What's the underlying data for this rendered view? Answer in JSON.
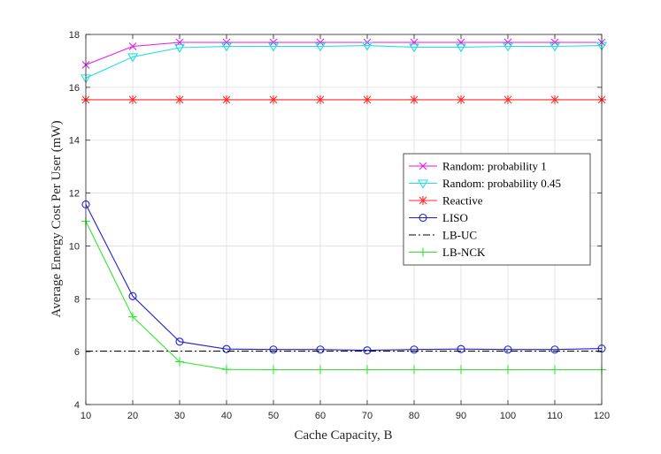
{
  "chart_data": {
    "type": "line",
    "xlabel": "Cache Capacity, B",
    "ylabel": "Average Energy Cost Per User (mW)",
    "xlim": [
      10,
      120
    ],
    "ylim": [
      4,
      18
    ],
    "xticks": [
      10,
      20,
      30,
      40,
      50,
      60,
      70,
      80,
      90,
      100,
      110,
      120
    ],
    "yticks": [
      4,
      6,
      8,
      10,
      12,
      14,
      16,
      18
    ],
    "grid": true,
    "legend_position": "right",
    "x": [
      10,
      20,
      30,
      40,
      50,
      60,
      70,
      80,
      90,
      100,
      110,
      120
    ],
    "series": [
      {
        "name": "Random: probability 1",
        "color": "#e619e6",
        "marker": "x",
        "line": "solid",
        "values": [
          16.85,
          17.55,
          17.7,
          17.7,
          17.7,
          17.7,
          17.7,
          17.7,
          17.7,
          17.7,
          17.7,
          17.7
        ]
      },
      {
        "name": "Random: probability 0.45",
        "color": "#22e0e0",
        "marker": "triangle-down",
        "line": "solid",
        "values": [
          16.35,
          17.15,
          17.5,
          17.55,
          17.55,
          17.55,
          17.58,
          17.52,
          17.52,
          17.55,
          17.55,
          17.58
        ]
      },
      {
        "name": "Reactive",
        "color": "#ff2a2a",
        "marker": "star",
        "line": "solid",
        "values": [
          15.53,
          15.53,
          15.53,
          15.53,
          15.53,
          15.53,
          15.53,
          15.53,
          15.53,
          15.53,
          15.53,
          15.53
        ]
      },
      {
        "name": "LISO",
        "color": "#1f1fd6",
        "marker": "circle",
        "line": "solid",
        "values": [
          11.57,
          8.1,
          6.38,
          6.1,
          6.08,
          6.08,
          6.05,
          6.08,
          6.1,
          6.08,
          6.08,
          6.12
        ]
      },
      {
        "name": "LB-UC",
        "color": "#000000",
        "marker": "none",
        "line": "dash-dot",
        "values": [
          6.02,
          6.02,
          6.02,
          6.02,
          6.02,
          6.02,
          6.02,
          6.02,
          6.02,
          6.02,
          6.02,
          6.02
        ]
      },
      {
        "name": "LB-NCK",
        "color": "#2de82d",
        "marker": "plus",
        "line": "solid",
        "values": [
          10.93,
          7.32,
          5.62,
          5.33,
          5.32,
          5.32,
          5.32,
          5.32,
          5.32,
          5.32,
          5.32,
          5.32
        ]
      }
    ]
  }
}
